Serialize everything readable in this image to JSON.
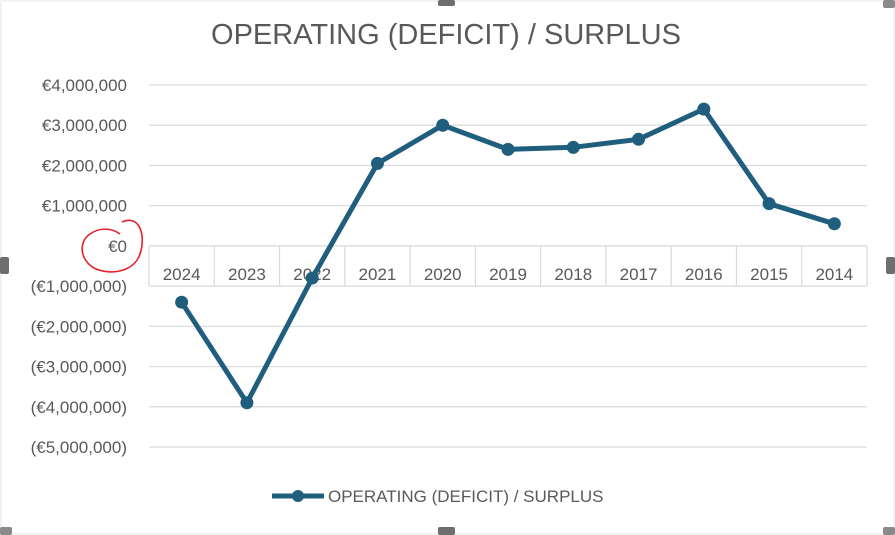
{
  "chart_data": {
    "type": "line",
    "title": "OPERATING (DEFICIT) / SURPLUS",
    "categories": [
      "2024",
      "2023",
      "2022",
      "2021",
      "2020",
      "2019",
      "2018",
      "2017",
      "2016",
      "2015",
      "2014"
    ],
    "series": [
      {
        "name": "OPERATING (DEFICIT) / SURPLUS",
        "values": [
          -1400000,
          -3900000,
          -800000,
          2050000,
          3000000,
          2400000,
          2450000,
          2650000,
          3400000,
          1050000,
          550000
        ]
      }
    ],
    "y_ticks": [
      {
        "value": 4000000,
        "label": "€4,000,000"
      },
      {
        "value": 3000000,
        "label": "€3,000,000"
      },
      {
        "value": 2000000,
        "label": "€2,000,000"
      },
      {
        "value": 1000000,
        "label": "€1,000,000"
      },
      {
        "value": 0,
        "label": "€0"
      },
      {
        "value": -1000000,
        "label": "(€1,000,000)"
      },
      {
        "value": -2000000,
        "label": "(€2,000,000)"
      },
      {
        "value": -3000000,
        "label": "(€3,000,000)"
      },
      {
        "value": -4000000,
        "label": "(€4,000,000)"
      },
      {
        "value": -5000000,
        "label": "(€5,000,000)"
      }
    ],
    "ylim": [
      -5000000,
      4000000
    ],
    "grid": true,
    "legend_position": "bottom",
    "annotation": "red circle around €0 label",
    "colors": {
      "series": "#1f5f7d",
      "grid": "#d9d9d9",
      "text": "#595959",
      "annotation": "#e8202a"
    }
  }
}
